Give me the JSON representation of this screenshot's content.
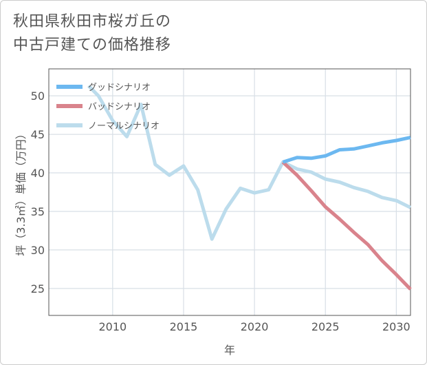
{
  "title_lines": [
    "秋田県秋田市桜ガ丘の",
    "中古戸建ての価格推移"
  ],
  "colors": {
    "good": "#6cb8f0",
    "bad": "#d9838c",
    "normal": "#bcdcec",
    "grid": "#d8dfe6",
    "axis": "#555555"
  },
  "chart_data": {
    "type": "line",
    "title": "秋田県秋田市桜ガ丘の中古戸建ての価格推移",
    "xlabel": "年",
    "ylabel": "坪（3.3㎡）単価（万円）",
    "xlim": [
      2005.5,
      2031
    ],
    "ylim": [
      21.5,
      53.5
    ],
    "xticks": [
      2010,
      2015,
      2020,
      2025,
      2030
    ],
    "yticks": [
      25,
      30,
      35,
      40,
      45,
      50
    ],
    "grid": true,
    "legend_position": "top-left",
    "series": [
      {
        "name": "グッドシナリオ",
        "key": "good",
        "x": [
          2022,
          2023,
          2024,
          2025,
          2026,
          2027,
          2028,
          2029,
          2030,
          2031
        ],
        "y": [
          41.4,
          42.0,
          41.9,
          42.2,
          43.0,
          43.1,
          43.5,
          43.9,
          44.2,
          44.6
        ]
      },
      {
        "name": "バッドシナリオ",
        "key": "bad",
        "x": [
          2022,
          2023,
          2024,
          2025,
          2026,
          2027,
          2028,
          2029,
          2030,
          2031
        ],
        "y": [
          41.4,
          39.7,
          37.7,
          35.6,
          34.0,
          32.3,
          30.7,
          28.6,
          26.8,
          24.9
        ]
      },
      {
        "name": "ノーマルシナリオ",
        "key": "normal",
        "x": [
          2008.3,
          2009,
          2010,
          2011,
          2012,
          2013,
          2014,
          2015,
          2016,
          2017,
          2018,
          2019,
          2020,
          2021,
          2022,
          2023,
          2024,
          2025,
          2026,
          2027,
          2028,
          2029,
          2030,
          2031
        ],
        "y": [
          51.3,
          50.0,
          46.8,
          44.7,
          48.9,
          41.1,
          39.7,
          40.9,
          37.8,
          31.4,
          35.3,
          38.0,
          37.4,
          37.8,
          41.4,
          40.5,
          40.1,
          39.2,
          38.8,
          38.1,
          37.6,
          36.8,
          36.4,
          35.5
        ]
      }
    ]
  }
}
